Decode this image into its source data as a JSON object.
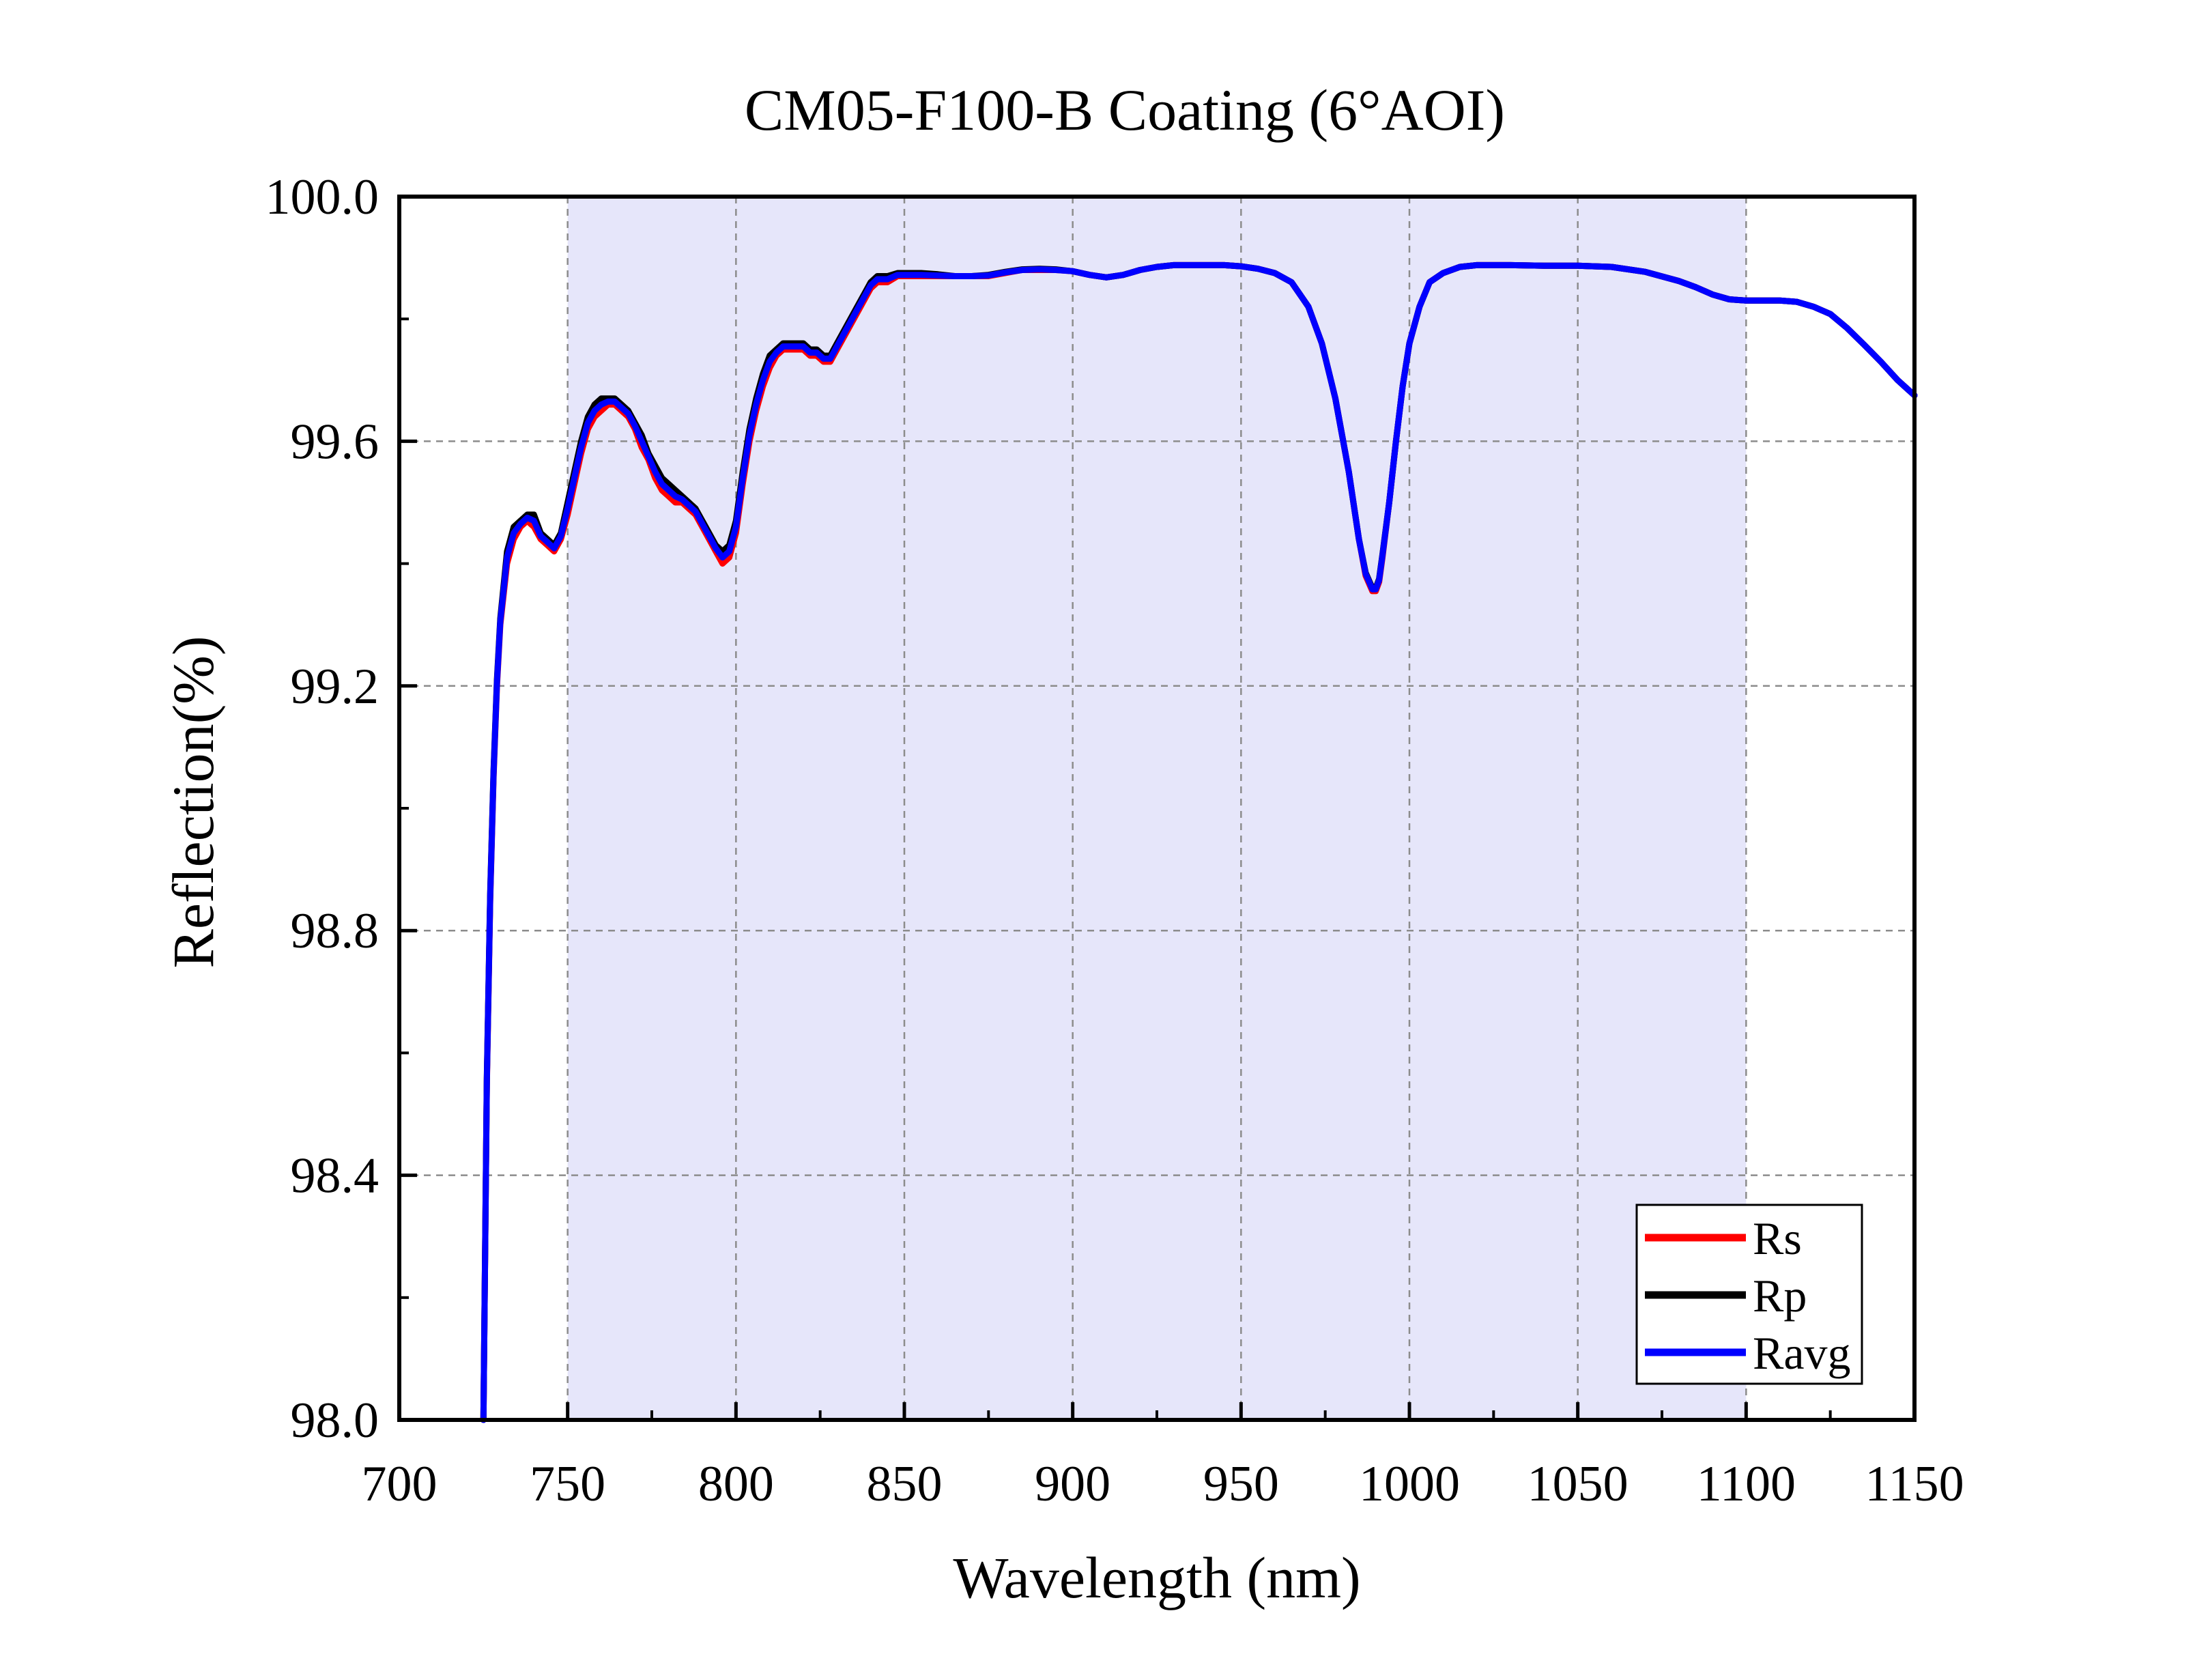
{
  "chart_data": {
    "type": "line",
    "title": "CM05-F100-B Coating (6°AOI)",
    "xlabel": "Wavelength (nm)",
    "ylabel": "Reflection(%)",
    "xlim": [
      700,
      1150
    ],
    "ylim": [
      98.0,
      100.0
    ],
    "xticks": [
      "700",
      "750",
      "800",
      "850",
      "900",
      "950",
      "1000",
      "1050",
      "1100",
      "1150"
    ],
    "yticks": [
      "98.0",
      "98.4",
      "98.8",
      "99.2",
      "99.6",
      "100.0"
    ],
    "grid": true,
    "legend_position": "bottom-right",
    "shaded_band": {
      "x": [
        750,
        1100
      ],
      "color": "#e6e6fa"
    },
    "series": [
      {
        "name": "Rs",
        "color": "#ff0000",
        "x": [
          725,
          726,
          727,
          728,
          729,
          730,
          732,
          734,
          736,
          738,
          740,
          742,
          744,
          746,
          748,
          750,
          752,
          754,
          756,
          758,
          760,
          762,
          764,
          766,
          768,
          770,
          772,
          774,
          776,
          778,
          780,
          782,
          784,
          786,
          788,
          790,
          792,
          794,
          796,
          798,
          800,
          802,
          804,
          806,
          808,
          810,
          812,
          814,
          816,
          818,
          820,
          822,
          824,
          826,
          828,
          830,
          832,
          835,
          838,
          840,
          842,
          845,
          848,
          850,
          855,
          860,
          865,
          870,
          875,
          880,
          885,
          890,
          895,
          900,
          905,
          910,
          915,
          920,
          925,
          930,
          935,
          940,
          945,
          950,
          955,
          960,
          965,
          970,
          974,
          978,
          982,
          985,
          987,
          989,
          990,
          991,
          992,
          994,
          996,
          998,
          1000,
          1003,
          1006,
          1010,
          1015,
          1020,
          1030,
          1040,
          1050,
          1060,
          1070,
          1080,
          1085,
          1090,
          1095,
          1100,
          1105,
          1110,
          1115,
          1120,
          1125,
          1130,
          1135,
          1140,
          1145,
          1150
        ],
        "values": [
          98.0,
          98.55,
          98.85,
          99.05,
          99.2,
          99.3,
          99.4,
          99.44,
          99.46,
          99.47,
          99.46,
          99.44,
          99.43,
          99.42,
          99.44,
          99.48,
          99.53,
          99.58,
          99.62,
          99.64,
          99.65,
          99.66,
          99.66,
          99.65,
          99.64,
          99.62,
          99.59,
          99.57,
          99.54,
          99.52,
          99.51,
          99.5,
          99.5,
          99.49,
          99.48,
          99.46,
          99.44,
          99.42,
          99.4,
          99.41,
          99.45,
          99.53,
          99.6,
          99.65,
          99.69,
          99.72,
          99.74,
          99.75,
          99.75,
          99.75,
          99.75,
          99.74,
          99.74,
          99.73,
          99.73,
          99.75,
          99.77,
          99.8,
          99.83,
          99.85,
          99.86,
          99.86,
          99.87,
          99.87,
          99.87,
          99.87,
          99.87,
          99.87,
          99.87,
          99.875,
          99.88,
          99.88,
          99.88,
          99.878,
          99.872,
          99.868,
          99.872,
          99.88,
          99.885,
          99.888,
          99.888,
          99.888,
          99.888,
          99.886,
          99.882,
          99.875,
          99.86,
          99.82,
          99.76,
          99.67,
          99.55,
          99.44,
          99.38,
          99.355,
          99.355,
          99.37,
          99.41,
          99.5,
          99.6,
          99.69,
          99.76,
          99.82,
          99.86,
          99.875,
          99.885,
          99.888,
          99.888,
          99.887,
          99.887,
          99.885,
          99.877,
          99.862,
          99.852,
          99.84,
          99.832,
          99.83,
          99.83,
          99.83,
          99.828,
          99.82,
          99.808,
          99.785,
          99.758,
          99.73,
          99.7,
          99.675
        ]
      },
      {
        "name": "Rp",
        "color": "#000000",
        "x": [
          725,
          726,
          727,
          728,
          729,
          730,
          732,
          734,
          736,
          738,
          740,
          742,
          744,
          746,
          748,
          750,
          752,
          754,
          756,
          758,
          760,
          762,
          764,
          766,
          768,
          770,
          772,
          774,
          776,
          778,
          780,
          782,
          784,
          786,
          788,
          790,
          792,
          794,
          796,
          798,
          800,
          802,
          804,
          806,
          808,
          810,
          812,
          814,
          816,
          818,
          820,
          822,
          824,
          826,
          828,
          830,
          832,
          835,
          838,
          840,
          842,
          845,
          848,
          850,
          855,
          860,
          865,
          870,
          875,
          880,
          885,
          890,
          895,
          900,
          905,
          910,
          915,
          920,
          925,
          930,
          935,
          940,
          945,
          950,
          955,
          960,
          965,
          970,
          974,
          978,
          982,
          985,
          987,
          989,
          990,
          991,
          992,
          994,
          996,
          998,
          1000,
          1003,
          1006,
          1010,
          1015,
          1020,
          1030,
          1040,
          1050,
          1060,
          1070,
          1080,
          1085,
          1090,
          1095,
          1100,
          1105,
          1110,
          1115,
          1120,
          1125,
          1130,
          1135,
          1140,
          1145,
          1150
        ],
        "values": [
          98.0,
          98.56,
          98.86,
          99.06,
          99.21,
          99.31,
          99.42,
          99.46,
          99.47,
          99.48,
          99.48,
          99.45,
          99.44,
          99.43,
          99.45,
          99.5,
          99.55,
          99.6,
          99.64,
          99.66,
          99.67,
          99.67,
          99.67,
          99.66,
          99.65,
          99.63,
          99.61,
          99.58,
          99.56,
          99.54,
          99.53,
          99.52,
          99.51,
          99.5,
          99.49,
          99.47,
          99.45,
          99.43,
          99.42,
          99.43,
          99.47,
          99.55,
          99.62,
          99.67,
          99.71,
          99.74,
          99.75,
          99.76,
          99.76,
          99.76,
          99.76,
          99.75,
          99.75,
          99.74,
          99.74,
          99.76,
          99.78,
          99.81,
          99.84,
          99.86,
          99.87,
          99.87,
          99.875,
          99.875,
          99.875,
          99.873,
          99.87,
          99.87,
          99.872,
          99.877,
          99.881,
          99.882,
          99.881,
          99.878,
          99.872,
          99.868,
          99.872,
          99.88,
          99.885,
          99.888,
          99.888,
          99.888,
          99.888,
          99.886,
          99.882,
          99.875,
          99.86,
          99.82,
          99.76,
          99.67,
          99.55,
          99.44,
          99.385,
          99.36,
          99.36,
          99.375,
          99.415,
          99.5,
          99.6,
          99.69,
          99.76,
          99.82,
          99.86,
          99.875,
          99.885,
          99.888,
          99.888,
          99.887,
          99.887,
          99.885,
          99.877,
          99.862,
          99.852,
          99.84,
          99.832,
          99.83,
          99.83,
          99.83,
          99.828,
          99.82,
          99.808,
          99.785,
          99.758,
          99.73,
          99.7,
          99.675
        ]
      },
      {
        "name": "Ravg",
        "color": "#0000ff",
        "x": [
          725,
          726,
          727,
          728,
          729,
          730,
          732,
          734,
          736,
          738,
          740,
          742,
          744,
          746,
          748,
          750,
          752,
          754,
          756,
          758,
          760,
          762,
          764,
          766,
          768,
          770,
          772,
          774,
          776,
          778,
          780,
          782,
          784,
          786,
          788,
          790,
          792,
          794,
          796,
          798,
          800,
          802,
          804,
          806,
          808,
          810,
          812,
          814,
          816,
          818,
          820,
          822,
          824,
          826,
          828,
          830,
          832,
          835,
          838,
          840,
          842,
          845,
          848,
          850,
          855,
          860,
          865,
          870,
          875,
          880,
          885,
          890,
          895,
          900,
          905,
          910,
          915,
          920,
          925,
          930,
          935,
          940,
          945,
          950,
          955,
          960,
          965,
          970,
          974,
          978,
          982,
          985,
          987,
          989,
          990,
          991,
          992,
          994,
          996,
          998,
          1000,
          1003,
          1006,
          1010,
          1015,
          1020,
          1030,
          1040,
          1050,
          1060,
          1070,
          1080,
          1085,
          1090,
          1095,
          1100,
          1105,
          1110,
          1115,
          1120,
          1125,
          1130,
          1135,
          1140,
          1145,
          1150
        ],
        "values": [
          98.0,
          98.555,
          98.855,
          99.055,
          99.205,
          99.305,
          99.41,
          99.45,
          99.465,
          99.475,
          99.47,
          99.445,
          99.435,
          99.425,
          99.445,
          99.49,
          99.54,
          99.59,
          99.63,
          99.65,
          99.66,
          99.665,
          99.665,
          99.655,
          99.645,
          99.625,
          99.6,
          99.575,
          99.55,
          99.53,
          99.52,
          99.51,
          99.505,
          99.495,
          99.485,
          99.465,
          99.445,
          99.425,
          99.41,
          99.42,
          99.46,
          99.54,
          99.61,
          99.66,
          99.7,
          99.73,
          99.745,
          99.755,
          99.755,
          99.755,
          99.755,
          99.745,
          99.745,
          99.735,
          99.735,
          99.755,
          99.775,
          99.805,
          99.835,
          99.855,
          99.865,
          99.865,
          99.872,
          99.872,
          99.872,
          99.871,
          99.87,
          99.87,
          99.871,
          99.876,
          99.88,
          99.881,
          99.88,
          99.878,
          99.872,
          99.868,
          99.872,
          99.88,
          99.885,
          99.888,
          99.888,
          99.888,
          99.888,
          99.886,
          99.882,
          99.875,
          99.86,
          99.82,
          99.76,
          99.67,
          99.55,
          99.44,
          99.383,
          99.358,
          99.358,
          99.373,
          99.413,
          99.5,
          99.6,
          99.69,
          99.76,
          99.82,
          99.86,
          99.875,
          99.885,
          99.888,
          99.888,
          99.887,
          99.887,
          99.885,
          99.877,
          99.862,
          99.852,
          99.84,
          99.832,
          99.83,
          99.83,
          99.83,
          99.828,
          99.82,
          99.808,
          99.785,
          99.758,
          99.73,
          99.7,
          99.675
        ]
      }
    ]
  }
}
